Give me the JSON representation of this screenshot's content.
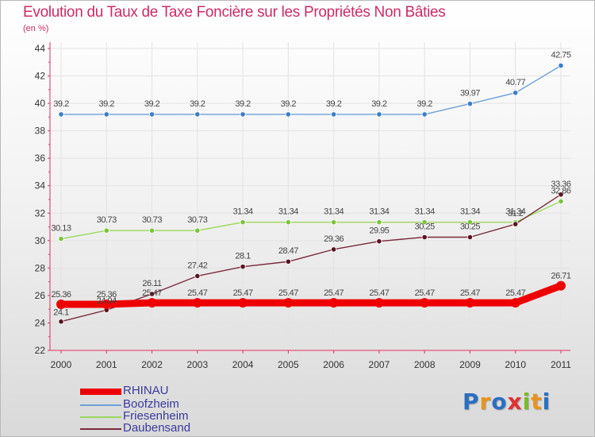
{
  "title": "Evolution du Taux de Taxe Foncière sur les Propriétés Non Bâties",
  "unit": "(en %)",
  "logo": {
    "letters": [
      "P",
      "r",
      "o",
      "x",
      "i",
      "t",
      "i"
    ]
  },
  "colors": {
    "axis": "#e03060",
    "grid": "#e3e3e3",
    "tick_label": "#333333",
    "value_label": "#444444",
    "legend_text": "#3a3a9e",
    "logo": [
      "#2a6fc0",
      "#e8941c",
      "#2a6fc0",
      "#e03030",
      "#7aba28",
      "#e8941c",
      "#2a6fc0"
    ]
  },
  "chart_data": {
    "type": "line",
    "title": "Evolution du Taux de Taxe Foncière sur les Propriétés Non Bâties",
    "ylabel": "(en %)",
    "xlabel": "",
    "ylim": [
      22,
      44
    ],
    "y_ticks": [
      "22",
      "24",
      "26",
      "28",
      "30",
      "32",
      "34",
      "36",
      "38",
      "40",
      "42",
      "44"
    ],
    "categories": [
      "2000",
      "2001",
      "2002",
      "2003",
      "2004",
      "2005",
      "2006",
      "2007",
      "2008",
      "2009",
      "2010",
      "2011"
    ],
    "grid": true,
    "legend_position": "bottom-left",
    "series": [
      {
        "name": "RHINAU",
        "color": "#ee0000",
        "thick": true,
        "values": [
          25.36,
          25.36,
          25.47,
          25.47,
          25.47,
          25.47,
          25.47,
          25.47,
          25.47,
          25.47,
          25.47,
          26.71
        ],
        "labels": [
          "25.36",
          "25.36",
          "25.47",
          "25.47",
          "25.47",
          "25.47",
          "25.47",
          "25.47",
          "25.47",
          "25.47",
          "25.47",
          "26.71"
        ]
      },
      {
        "name": "Boofzheim",
        "color": "#6ea0d8",
        "dot": "#3c7dc8",
        "values": [
          39.2,
          39.2,
          39.2,
          39.2,
          39.2,
          39.2,
          39.2,
          39.2,
          39.2,
          39.97,
          40.77,
          42.75
        ],
        "labels": [
          "39.2",
          "39.2",
          "39.2",
          "39.2",
          "39.2",
          "39.2",
          "39.2",
          "39.2",
          "39.2",
          "39.97",
          "40.77",
          "42.75"
        ]
      },
      {
        "name": "Friesenheim",
        "color": "#9ad85a",
        "dot": "#7ac43a",
        "values": [
          30.13,
          30.73,
          30.73,
          30.73,
          31.34,
          31.34,
          31.34,
          31.34,
          31.34,
          31.34,
          31.34,
          32.86
        ],
        "labels": [
          "30.13",
          "30.73",
          "30.73",
          "30.73",
          "31.34",
          "31.34",
          "31.34",
          "31.34",
          "31.34",
          "31.34",
          "31.34",
          "32.86"
        ]
      },
      {
        "name": "Daubensand",
        "color": "#7a2a3a",
        "dot": "#5a1420",
        "values": [
          24.1,
          24.94,
          26.11,
          27.42,
          28.1,
          28.47,
          29.36,
          29.95,
          30.25,
          30.25,
          31.2,
          33.36
        ],
        "labels": [
          "24.1",
          "24.94",
          "26.11",
          "27.42",
          "28.1",
          "28.47",
          "29.36",
          "29.95",
          "30.25",
          "30.25",
          "31.2",
          "33.36"
        ]
      }
    ]
  }
}
